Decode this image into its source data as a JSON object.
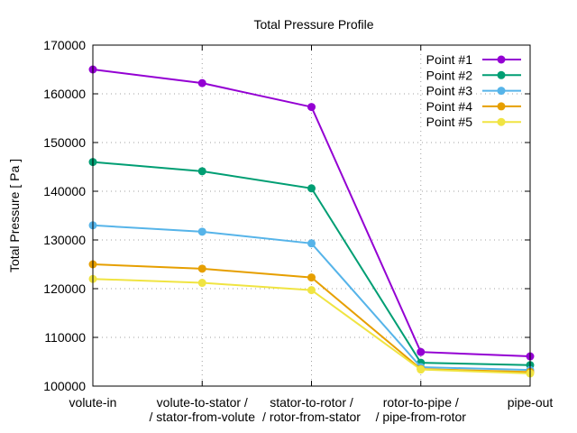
{
  "chart_data": {
    "type": "line",
    "title": "Total Pressure Profile",
    "xlabel": "",
    "ylabel": "Total Pressure [ Pa ]",
    "ylim": [
      100000,
      170000
    ],
    "yticks": [
      100000,
      110000,
      120000,
      130000,
      140000,
      150000,
      160000,
      170000
    ],
    "ytick_labels": [
      "100000",
      "110000",
      "120000",
      "130000",
      "140000",
      "150000",
      "160000",
      "170000"
    ],
    "categories": [
      [
        "volute-in"
      ],
      [
        "volute-to-stator /",
        "/ stator-from-volute"
      ],
      [
        "stator-to-rotor /",
        "/ rotor-from-stator"
      ],
      [
        "rotor-to-pipe /",
        "/ pipe-from-rotor"
      ],
      [
        "pipe-out"
      ]
    ],
    "grid": true,
    "legend_position": "top-right",
    "series": [
      {
        "name": "Point #1",
        "color": "#9400d3",
        "values": [
          165000,
          162200,
          157300,
          107000,
          106100
        ]
      },
      {
        "name": "Point #2",
        "color": "#009e73",
        "values": [
          146000,
          144100,
          140600,
          104800,
          104300
        ]
      },
      {
        "name": "Point #3",
        "color": "#56b4e9",
        "values": [
          133000,
          131700,
          129300,
          103900,
          103300
        ]
      },
      {
        "name": "Point #4",
        "color": "#e69f00",
        "values": [
          125000,
          124100,
          122300,
          103500,
          102900
        ]
      },
      {
        "name": "Point #5",
        "color": "#f0e442",
        "values": [
          122000,
          121200,
          119700,
          103400,
          102600
        ]
      }
    ]
  }
}
